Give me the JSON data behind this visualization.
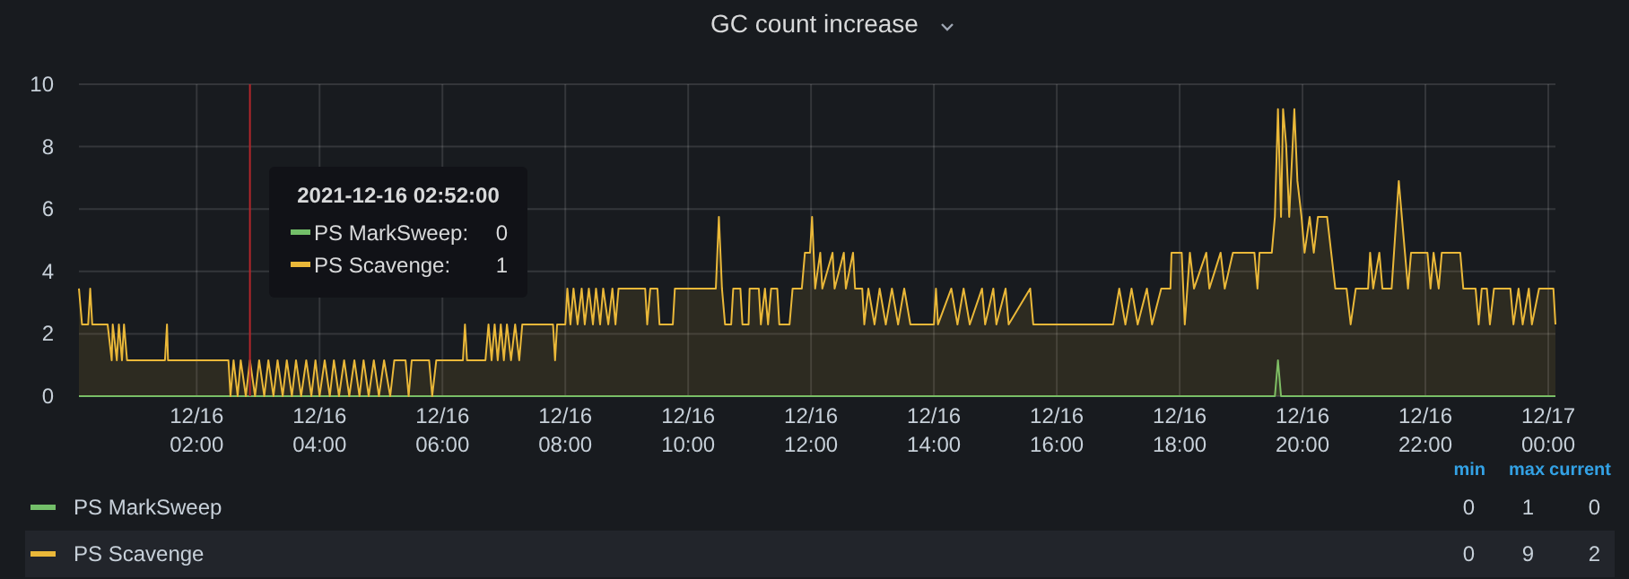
{
  "chart_data": {
    "type": "area",
    "title": "GC count increase",
    "xlim": [
      "2021-12-16T00:05",
      "2021-12-17T00:07"
    ],
    "ylim": [
      0,
      10
    ],
    "yticks": [
      0,
      2,
      4,
      6,
      8,
      10
    ],
    "xticks": [
      {
        "value": "2021-12-16T02:00",
        "label": "12/16 02:00"
      },
      {
        "value": "2021-12-16T04:00",
        "label": "12/16 04:00"
      },
      {
        "value": "2021-12-16T06:00",
        "label": "12/16 06:00"
      },
      {
        "value": "2021-12-16T08:00",
        "label": "12/16 08:00"
      },
      {
        "value": "2021-12-16T10:00",
        "label": "12/16 10:00"
      },
      {
        "value": "2021-12-16T12:00",
        "label": "12/16 12:00"
      },
      {
        "value": "2021-12-16T14:00",
        "label": "12/16 14:00"
      },
      {
        "value": "2021-12-16T16:00",
        "label": "12/16 16:00"
      },
      {
        "value": "2021-12-16T18:00",
        "label": "12/16 18:00"
      },
      {
        "value": "2021-12-16T20:00",
        "label": "12/16 20:00"
      },
      {
        "value": "2021-12-16T22:00",
        "label": "12/16 22:00"
      },
      {
        "value": "2021-12-17T00:00",
        "label": "12/17 00:00"
      }
    ],
    "grid": true,
    "legend": "bottom",
    "series": [
      {
        "name": "PS MarkSweep",
        "color": "#73bf69",
        "x": [
          "2021-12-16T00:05",
          "2021-12-16T19:33",
          "2021-12-16T19:36",
          "2021-12-16T19:39",
          "2021-12-17T00:07"
        ],
        "values": [
          0,
          0,
          1.15,
          0,
          0
        ]
      },
      {
        "name": "PS Scavenge",
        "color": "#eab839",
        "x": [
          "2021-12-16T00:05",
          "2021-12-16T00:08",
          "2021-12-16T00:14",
          "2021-12-16T00:16",
          "2021-12-16T00:18",
          "2021-12-16T00:33",
          "2021-12-16T00:37",
          "2021-12-16T00:38",
          "2021-12-16T00:42",
          "2021-12-16T00:44",
          "2021-12-16T00:47",
          "2021-12-16T00:49",
          "2021-12-16T00:52",
          "2021-12-16T01:29",
          "2021-12-16T01:31",
          "2021-12-16T01:32",
          "2021-12-16T02:31",
          "2021-12-16T02:33",
          "2021-12-16T02:36",
          "2021-12-16T02:40",
          "2021-12-16T02:43",
          "2021-12-16T02:48",
          "2021-12-16T02:52",
          "2021-12-16T02:57",
          "2021-12-16T03:01",
          "2021-12-16T03:06",
          "2021-12-16T03:10",
          "2021-12-16T03:15",
          "2021-12-16T03:19",
          "2021-12-16T03:24",
          "2021-12-16T03:28",
          "2021-12-16T03:33",
          "2021-12-16T03:37",
          "2021-12-16T03:42",
          "2021-12-16T03:47",
          "2021-12-16T03:52",
          "2021-12-16T03:56",
          "2021-12-16T04:00",
          "2021-12-16T04:05",
          "2021-12-16T04:10",
          "2021-12-16T04:14",
          "2021-12-16T04:19",
          "2021-12-16T04:24",
          "2021-12-16T04:29",
          "2021-12-16T04:34",
          "2021-12-16T04:39",
          "2021-12-16T04:43",
          "2021-12-16T04:48",
          "2021-12-16T04:53",
          "2021-12-16T04:58",
          "2021-12-16T05:03",
          "2021-12-16T05:09",
          "2021-12-16T05:13",
          "2021-12-16T05:24",
          "2021-12-16T05:27",
          "2021-12-16T05:30",
          "2021-12-16T05:47",
          "2021-12-16T05:50",
          "2021-12-16T05:54",
          "2021-12-16T06:20",
          "2021-12-16T06:22",
          "2021-12-16T06:24",
          "2021-12-16T06:42",
          "2021-12-16T06:45",
          "2021-12-16T06:48",
          "2021-12-16T06:51",
          "2021-12-16T06:54",
          "2021-12-16T06:57",
          "2021-12-16T07:00",
          "2021-12-16T07:03",
          "2021-12-16T07:07",
          "2021-12-16T07:11",
          "2021-12-16T07:15",
          "2021-12-16T07:18",
          "2021-12-16T07:48",
          "2021-12-16T07:50",
          "2021-12-16T07:52",
          "2021-12-16T08:00",
          "2021-12-16T08:02",
          "2021-12-16T08:05",
          "2021-12-16T08:08",
          "2021-12-16T08:12",
          "2021-12-16T08:16",
          "2021-12-16T08:19",
          "2021-12-16T08:23",
          "2021-12-16T08:27",
          "2021-12-16T08:30",
          "2021-12-16T08:34",
          "2021-12-16T08:37",
          "2021-12-16T08:42",
          "2021-12-16T08:46",
          "2021-12-16T08:49",
          "2021-12-16T08:52",
          "2021-12-16T09:18",
          "2021-12-16T09:20",
          "2021-12-16T09:23",
          "2021-12-16T09:30",
          "2021-12-16T09:32",
          "2021-12-16T09:45",
          "2021-12-16T09:47",
          "2021-12-16T10:27",
          "2021-12-16T10:30",
          "2021-12-16T10:33",
          "2021-12-16T10:36",
          "2021-12-16T10:42",
          "2021-12-16T10:44",
          "2021-12-16T10:51",
          "2021-12-16T10:53",
          "2021-12-16T10:59",
          "2021-12-16T11:00",
          "2021-12-16T11:09",
          "2021-12-16T11:11",
          "2021-12-16T11:15",
          "2021-12-16T11:18",
          "2021-12-16T11:21",
          "2021-12-16T11:27",
          "2021-12-16T11:29",
          "2021-12-16T11:39",
          "2021-12-16T11:42",
          "2021-12-16T11:51",
          "2021-12-16T11:54",
          "2021-12-16T11:59",
          "2021-12-16T12:01",
          "2021-12-16T12:04",
          "2021-12-16T12:09",
          "2021-12-16T12:11",
          "2021-12-16T12:21",
          "2021-12-16T12:23",
          "2021-12-16T12:32",
          "2021-12-16T12:34",
          "2021-12-16T12:41",
          "2021-12-16T12:43",
          "2021-12-16T12:50",
          "2021-12-16T12:52",
          "2021-12-16T12:56",
          "2021-12-16T13:02",
          "2021-12-16T13:07",
          "2021-12-16T13:13",
          "2021-12-16T13:19",
          "2021-12-16T13:25",
          "2021-12-16T13:31",
          "2021-12-16T13:37",
          "2021-12-16T14:00",
          "2021-12-16T14:02",
          "2021-12-16T14:04",
          "2021-12-16T14:17",
          "2021-12-16T14:23",
          "2021-12-16T14:29",
          "2021-12-16T14:35",
          "2021-12-16T14:47",
          "2021-12-16T14:50",
          "2021-12-16T14:58",
          "2021-12-16T15:01",
          "2021-12-16T15:10",
          "2021-12-16T15:13",
          "2021-12-16T15:34",
          "2021-12-16T15:37",
          "2021-12-16T16:55",
          "2021-12-16T17:01",
          "2021-12-16T17:07",
          "2021-12-16T17:13",
          "2021-12-16T17:19",
          "2021-12-16T17:28",
          "2021-12-16T17:33",
          "2021-12-16T17:42",
          "2021-12-16T17:51",
          "2021-12-16T17:52",
          "2021-12-16T18:02",
          "2021-12-16T18:05",
          "2021-12-16T18:10",
          "2021-12-16T18:14",
          "2021-12-16T18:26",
          "2021-12-16T18:29",
          "2021-12-16T18:40",
          "2021-12-16T18:44",
          "2021-12-16T18:52",
          "2021-12-16T19:13",
          "2021-12-16T19:16",
          "2021-12-16T19:18",
          "2021-12-16T19:30",
          "2021-12-16T19:33",
          "2021-12-16T19:36",
          "2021-12-16T19:39",
          "2021-12-16T19:41",
          "2021-12-16T19:44",
          "2021-12-16T19:47",
          "2021-12-16T19:52",
          "2021-12-16T19:55",
          "2021-12-16T19:59",
          "2021-12-16T20:02",
          "2021-12-16T20:07",
          "2021-12-16T20:11",
          "2021-12-16T20:15",
          "2021-12-16T20:24",
          "2021-12-16T20:28",
          "2021-12-16T20:32",
          "2021-12-16T20:43",
          "2021-12-16T20:47",
          "2021-12-16T20:52",
          "2021-12-16T21:04",
          "2021-12-16T21:06",
          "2021-12-16T21:09",
          "2021-12-16T21:15",
          "2021-12-16T21:18",
          "2021-12-16T21:27",
          "2021-12-16T21:34",
          "2021-12-16T21:40",
          "2021-12-16T21:43",
          "2021-12-16T21:46",
          "2021-12-16T22:02",
          "2021-12-16T22:05",
          "2021-12-16T22:08",
          "2021-12-16T22:13",
          "2021-12-16T22:16",
          "2021-12-16T22:34",
          "2021-12-16T22:37",
          "2021-12-16T22:49",
          "2021-12-16T22:52",
          "2021-12-16T22:55",
          "2021-12-16T23:00",
          "2021-12-16T23:03",
          "2021-12-16T23:07",
          "2021-12-16T23:23",
          "2021-12-16T23:26",
          "2021-12-16T23:31",
          "2021-12-16T23:35",
          "2021-12-16T23:41",
          "2021-12-16T23:44",
          "2021-12-16T23:51",
          "2021-12-17T00:05",
          "2021-12-17T00:07"
        ],
        "values": [
          3.45,
          2.3,
          2.3,
          3.45,
          2.3,
          2.3,
          1.15,
          2.3,
          1.15,
          2.3,
          1.15,
          2.3,
          1.15,
          1.15,
          2.3,
          1.15,
          1.15,
          0,
          1.15,
          0,
          1.15,
          0,
          1.15,
          0,
          1.15,
          0,
          1.15,
          0,
          1.15,
          0,
          1.15,
          0,
          1.15,
          0,
          1.15,
          0,
          1.15,
          0,
          1.15,
          0,
          1.15,
          0,
          1.15,
          0,
          1.15,
          0,
          1.15,
          0,
          1.15,
          0,
          1.15,
          0,
          1.15,
          1.15,
          0,
          1.15,
          1.15,
          0,
          1.15,
          1.15,
          2.3,
          1.15,
          1.15,
          2.3,
          1.15,
          2.3,
          1.15,
          2.3,
          1.15,
          2.3,
          1.15,
          2.3,
          1.15,
          2.3,
          2.3,
          1.15,
          2.3,
          2.3,
          3.45,
          2.3,
          3.45,
          2.3,
          3.45,
          2.3,
          3.45,
          2.3,
          3.45,
          2.3,
          3.45,
          2.3,
          3.45,
          2.3,
          3.45,
          3.45,
          2.3,
          3.45,
          3.45,
          2.3,
          2.3,
          3.45,
          3.45,
          5.75,
          3.45,
          2.3,
          2.3,
          3.45,
          3.45,
          2.3,
          2.3,
          3.45,
          3.45,
          2.3,
          3.45,
          2.3,
          3.45,
          3.45,
          2.3,
          2.3,
          3.45,
          3.45,
          4.6,
          4.6,
          5.75,
          3.45,
          4.6,
          3.45,
          4.6,
          3.45,
          4.6,
          3.45,
          4.6,
          3.45,
          3.45,
          2.3,
          3.45,
          2.3,
          3.45,
          2.3,
          3.45,
          2.3,
          3.45,
          2.3,
          2.3,
          3.45,
          2.3,
          3.45,
          2.3,
          3.45,
          2.3,
          3.45,
          2.3,
          3.45,
          2.3,
          3.45,
          2.3,
          3.45,
          2.3,
          2.3,
          3.45,
          2.3,
          3.45,
          2.3,
          3.45,
          2.3,
          3.45,
          3.45,
          4.6,
          4.6,
          2.3,
          4.6,
          3.45,
          4.6,
          3.45,
          4.6,
          3.45,
          4.6,
          4.6,
          3.45,
          4.6,
          4.6,
          5.75,
          9.2,
          5.75,
          9.2,
          8.05,
          5.75,
          9.2,
          6.9,
          5.75,
          4.6,
          5.75,
          4.6,
          5.75,
          5.75,
          4.6,
          3.45,
          3.45,
          2.3,
          3.45,
          3.45,
          4.6,
          3.45,
          4.6,
          3.45,
          3.45,
          6.9,
          4.6,
          3.45,
          4.6,
          4.6,
          3.45,
          4.6,
          3.45,
          4.6,
          4.6,
          3.45,
          3.45,
          2.3,
          3.45,
          3.45,
          2.3,
          3.45,
          3.45,
          2.3,
          3.45,
          2.3,
          3.45,
          2.3,
          3.45,
          3.45,
          2.3
        ]
      }
    ],
    "ref_lines": [
      {
        "axis": "x",
        "value": "2021-12-16T02:52",
        "color": "#b3262b"
      }
    ],
    "annotations": [
      "2021-12-16 02:52:00",
      "PS MarkSweep:",
      "0",
      "PS Scavenge:",
      "1",
      "min",
      "max",
      "current",
      "0",
      "1",
      "0",
      "0",
      "9",
      "2"
    ]
  }
}
